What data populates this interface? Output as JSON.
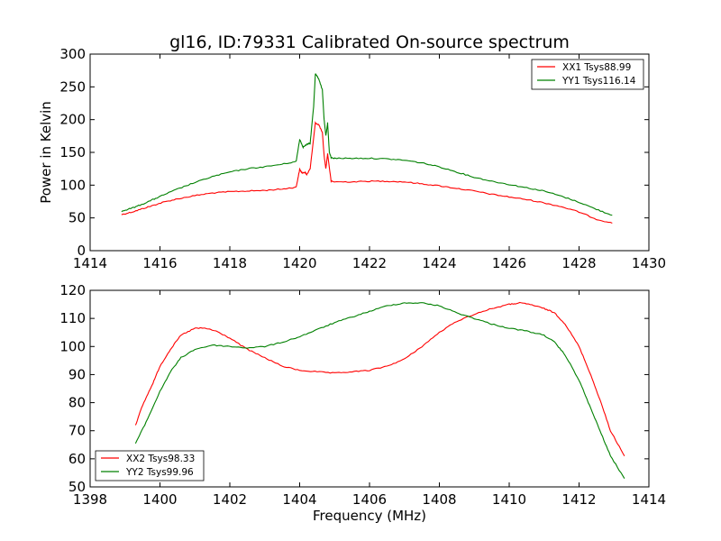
{
  "chart_data": [
    {
      "type": "line",
      "title": "gl16, ID:79331 Calibrated On-source spectrum",
      "xlabel": "",
      "ylabel": "Power in Kelvin",
      "xlim": [
        1414,
        1430
      ],
      "ylim": [
        0,
        300
      ],
      "xticks": [
        1414,
        1416,
        1418,
        1420,
        1422,
        1424,
        1426,
        1428,
        1430
      ],
      "yticks": [
        0,
        50,
        100,
        150,
        200,
        250,
        300
      ],
      "legend": "top-right",
      "grid": false,
      "series": [
        {
          "name": "XX1 Tsys88.99",
          "color": "#ff0000",
          "points": [
            [
              1414.9,
              55
            ],
            [
              1415.2,
              59
            ],
            [
              1415.5,
              64
            ],
            [
              1415.8,
              69
            ],
            [
              1416.1,
              74
            ],
            [
              1416.5,
              79
            ],
            [
              1417,
              84
            ],
            [
              1417.5,
              88
            ],
            [
              1418,
              90
            ],
            [
              1418.5,
              91
            ],
            [
              1419,
              92
            ],
            [
              1419.5,
              94
            ],
            [
              1419.9,
              97
            ],
            [
              1420.0,
              124
            ],
            [
              1420.08,
              118
            ],
            [
              1420.15,
              120
            ],
            [
              1420.2,
              116
            ],
            [
              1420.3,
              125
            ],
            [
              1420.45,
              195
            ],
            [
              1420.55,
              192
            ],
            [
              1420.65,
              180
            ],
            [
              1420.7,
              145
            ],
            [
              1420.75,
              125
            ],
            [
              1420.8,
              148
            ],
            [
              1420.9,
              106
            ],
            [
              1421,
              105
            ],
            [
              1421.5,
              105
            ],
            [
              1422,
              106
            ],
            [
              1422.5,
              106
            ],
            [
              1423,
              105
            ],
            [
              1423.5,
              102
            ],
            [
              1424,
              99
            ],
            [
              1424.5,
              95
            ],
            [
              1425,
              91
            ],
            [
              1425.5,
              86
            ],
            [
              1426,
              82
            ],
            [
              1426.5,
              78
            ],
            [
              1427,
              73
            ],
            [
              1427.5,
              67
            ],
            [
              1428,
              59
            ],
            [
              1428.5,
              48
            ],
            [
              1428.95,
              42
            ]
          ]
        },
        {
          "name": "YY1 Tsys116.14",
          "color": "#008000",
          "points": [
            [
              1414.9,
              60
            ],
            [
              1415.2,
              65
            ],
            [
              1415.5,
              71
            ],
            [
              1415.8,
              78
            ],
            [
              1416.1,
              85
            ],
            [
              1416.5,
              94
            ],
            [
              1417,
              104
            ],
            [
              1417.5,
              113
            ],
            [
              1418,
              120
            ],
            [
              1418.5,
              125
            ],
            [
              1419,
              128
            ],
            [
              1419.5,
              132
            ],
            [
              1419.9,
              136
            ],
            [
              1420.0,
              170
            ],
            [
              1420.1,
              158
            ],
            [
              1420.2,
              162
            ],
            [
              1420.3,
              164
            ],
            [
              1420.4,
              220
            ],
            [
              1420.45,
              270
            ],
            [
              1420.55,
              262
            ],
            [
              1420.65,
              245
            ],
            [
              1420.7,
              200
            ],
            [
              1420.75,
              175
            ],
            [
              1420.8,
              195
            ],
            [
              1420.85,
              150
            ],
            [
              1420.9,
              142
            ],
            [
              1421,
              141
            ],
            [
              1421.5,
              141
            ],
            [
              1422,
              141
            ],
            [
              1422.5,
              140
            ],
            [
              1423,
              138
            ],
            [
              1423.5,
              134
            ],
            [
              1424,
              128
            ],
            [
              1424.5,
              120
            ],
            [
              1425,
              112
            ],
            [
              1425.5,
              106
            ],
            [
              1426,
              101
            ],
            [
              1426.5,
              96
            ],
            [
              1427,
              91
            ],
            [
              1427.5,
              83
            ],
            [
              1428,
              74
            ],
            [
              1428.5,
              63
            ],
            [
              1428.95,
              54
            ]
          ]
        }
      ]
    },
    {
      "type": "line",
      "title": "",
      "xlabel": "Frequency (MHz)",
      "ylabel": "",
      "xlim": [
        1398,
        1414
      ],
      "ylim": [
        50,
        120
      ],
      "xticks": [
        1398,
        1400,
        1402,
        1404,
        1406,
        1408,
        1410,
        1412,
        1414
      ],
      "yticks": [
        50,
        60,
        70,
        80,
        90,
        100,
        110,
        120
      ],
      "legend": "bottom-left",
      "grid": false,
      "series": [
        {
          "name": "XX2 Tsys98.33",
          "color": "#ff0000",
          "points": [
            [
              1399.3,
              72
            ],
            [
              1399.5,
              79
            ],
            [
              1399.8,
              87
            ],
            [
              1400,
              93
            ],
            [
              1400.3,
              99
            ],
            [
              1400.6,
              104
            ],
            [
              1401,
              106.5
            ],
            [
              1401.3,
              106.5
            ],
            [
              1401.6,
              105.5
            ],
            [
              1402,
              103
            ],
            [
              1402.5,
              99
            ],
            [
              1403,
              96
            ],
            [
              1403.5,
              93
            ],
            [
              1404,
              91.5
            ],
            [
              1404.5,
              91
            ],
            [
              1405,
              90.5
            ],
            [
              1405.5,
              91
            ],
            [
              1406,
              91.5
            ],
            [
              1406.5,
              93
            ],
            [
              1407,
              95.5
            ],
            [
              1407.5,
              100
            ],
            [
              1408,
              105
            ],
            [
              1408.5,
              109
            ],
            [
              1409,
              111.5
            ],
            [
              1409.5,
              113.5
            ],
            [
              1410,
              115
            ],
            [
              1410.3,
              115.5
            ],
            [
              1410.6,
              115
            ],
            [
              1411,
              113.5
            ],
            [
              1411.3,
              112
            ],
            [
              1411.6,
              108
            ],
            [
              1412,
              100
            ],
            [
              1412.3,
              91
            ],
            [
              1412.6,
              81
            ],
            [
              1412.9,
              70
            ],
            [
              1413.3,
              61
            ]
          ]
        },
        {
          "name": "YY2 Tsys99.96",
          "color": "#008000",
          "points": [
            [
              1399.3,
              65.5
            ],
            [
              1399.6,
              73
            ],
            [
              1400,
              84
            ],
            [
              1400.3,
              91
            ],
            [
              1400.6,
              96
            ],
            [
              1401,
              99
            ],
            [
              1401.5,
              100.5
            ],
            [
              1402,
              100
            ],
            [
              1402.5,
              99.5
            ],
            [
              1403,
              100
            ],
            [
              1403.5,
              101.5
            ],
            [
              1404,
              103.5
            ],
            [
              1404.5,
              106
            ],
            [
              1405,
              108.5
            ],
            [
              1405.5,
              110.5
            ],
            [
              1406,
              112.5
            ],
            [
              1406.5,
              114.5
            ],
            [
              1407,
              115.5
            ],
            [
              1407.5,
              115.5
            ],
            [
              1408,
              114.5
            ],
            [
              1408.5,
              112
            ],
            [
              1409,
              110
            ],
            [
              1409.5,
              108
            ],
            [
              1410,
              106.5
            ],
            [
              1410.5,
              105.5
            ],
            [
              1411,
              104
            ],
            [
              1411.3,
              101.5
            ],
            [
              1411.6,
              97
            ],
            [
              1412,
              88
            ],
            [
              1412.3,
              79
            ],
            [
              1412.6,
              70
            ],
            [
              1412.9,
              61
            ],
            [
              1413.3,
              53
            ]
          ]
        }
      ]
    }
  ]
}
